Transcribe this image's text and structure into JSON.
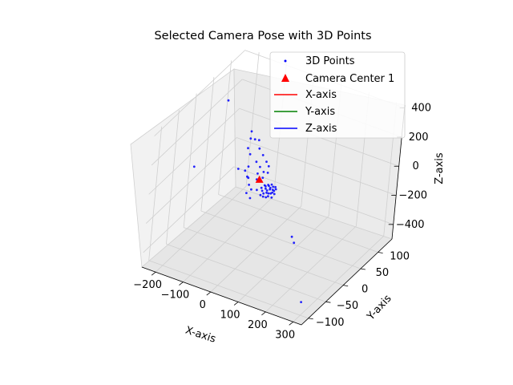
{
  "chart_data": {
    "type": "scatter",
    "title": "Selected Camera Pose with 3D Points",
    "projection": "3d",
    "xlabel": "X-axis",
    "ylabel": "Y-axis",
    "zlabel": "Z-axis",
    "xlim": [
      -250,
      330
    ],
    "ylim": [
      -120,
      140
    ],
    "zlim": [
      -500,
      420
    ],
    "x_ticks": [
      -200,
      -100,
      0,
      100,
      200,
      300
    ],
    "y_ticks": [
      -100,
      -50,
      0,
      50,
      100
    ],
    "z_ticks": [
      -400,
      -200,
      0,
      200,
      400
    ],
    "x_tick_labels": [
      "−200",
      "−100",
      "0",
      "100",
      "200",
      "300"
    ],
    "y_tick_labels": [
      "−100",
      "−50",
      "0",
      "50",
      "100"
    ],
    "z_tick_labels": [
      "−400",
      "−200",
      "0",
      "200",
      "400"
    ],
    "grid": true,
    "legend_position": "top-right",
    "legend": [
      {
        "label": "3D Points",
        "marker": "dot",
        "color": "#0000ff"
      },
      {
        "label": "Camera Center 1",
        "marker": "triangle",
        "color": "#ff0000"
      },
      {
        "label": "X-axis",
        "marker": "line",
        "color": "#ff0000"
      },
      {
        "label": "Y-axis",
        "marker": "line",
        "color": "#008000"
      },
      {
        "label": "Z-axis",
        "marker": "line",
        "color": "#0000ff"
      }
    ],
    "camera_center": {
      "x": 0,
      "y": 0,
      "z": 0
    },
    "points": [
      {
        "x": -180,
        "y": 40,
        "z": 330
      },
      {
        "x": -200,
        "y": -30,
        "z": 20
      },
      {
        "x": -110,
        "y": 60,
        "z": 120
      },
      {
        "x": -100,
        "y": 50,
        "z": 100
      },
      {
        "x": -90,
        "y": 55,
        "z": 90
      },
      {
        "x": -95,
        "y": 40,
        "z": 60
      },
      {
        "x": -70,
        "y": 50,
        "z": 110
      },
      {
        "x": -80,
        "y": 35,
        "z": 40
      },
      {
        "x": -60,
        "y": 45,
        "z": 70
      },
      {
        "x": -50,
        "y": 30,
        "z": 20
      },
      {
        "x": -65,
        "y": 20,
        "z": 0
      },
      {
        "x": -55,
        "y": 10,
        "z": -40
      },
      {
        "x": -100,
        "y": 20,
        "z": -40
      },
      {
        "x": -70,
        "y": 15,
        "z": -20
      },
      {
        "x": -40,
        "y": 40,
        "z": 50
      },
      {
        "x": -30,
        "y": 25,
        "z": 10
      },
      {
        "x": -20,
        "y": 35,
        "z": 30
      },
      {
        "x": -25,
        "y": 15,
        "z": -10
      },
      {
        "x": -10,
        "y": 20,
        "z": 0
      },
      {
        "x": -5,
        "y": 30,
        "z": 20
      },
      {
        "x": -45,
        "y": 5,
        "z": -30
      },
      {
        "x": -35,
        "y": 0,
        "z": -60
      },
      {
        "x": -15,
        "y": 5,
        "z": -20
      },
      {
        "x": 0,
        "y": 10,
        "z": -10
      },
      {
        "x": 5,
        "y": 20,
        "z": 5
      },
      {
        "x": -30,
        "y": -10,
        "z": -90
      },
      {
        "x": -20,
        "y": -5,
        "z": -70
      },
      {
        "x": -10,
        "y": -15,
        "z": -100
      },
      {
        "x": 0,
        "y": -5,
        "z": -60
      },
      {
        "x": 10,
        "y": 0,
        "z": -50
      },
      {
        "x": 15,
        "y": 5,
        "z": -40
      },
      {
        "x": 20,
        "y": -10,
        "z": -70
      },
      {
        "x": 25,
        "y": 0,
        "z": -45
      },
      {
        "x": 30,
        "y": 5,
        "z": -35
      },
      {
        "x": 35,
        "y": -5,
        "z": -55
      },
      {
        "x": 40,
        "y": 0,
        "z": -40
      },
      {
        "x": 45,
        "y": 5,
        "z": -30
      },
      {
        "x": 50,
        "y": -5,
        "z": -50
      },
      {
        "x": 55,
        "y": 0,
        "z": -40
      },
      {
        "x": 60,
        "y": -10,
        "z": -60
      },
      {
        "x": 28,
        "y": -8,
        "z": -58
      },
      {
        "x": 33,
        "y": -2,
        "z": -48
      },
      {
        "x": 38,
        "y": 3,
        "z": -38
      },
      {
        "x": 43,
        "y": -6,
        "z": -52
      },
      {
        "x": 48,
        "y": 2,
        "z": -42
      },
      {
        "x": 53,
        "y": -3,
        "z": -46
      },
      {
        "x": 22,
        "y": 2,
        "z": -36
      },
      {
        "x": 18,
        "y": -4,
        "z": -56
      },
      {
        "x": 42,
        "y": -12,
        "z": -66
      },
      {
        "x": 58,
        "y": 3,
        "z": -34
      },
      {
        "x": 36,
        "y": 8,
        "z": -28
      },
      {
        "x": 46,
        "y": -9,
        "z": -62
      },
      {
        "x": 26,
        "y": 6,
        "z": -32
      },
      {
        "x": 52,
        "y": 6,
        "z": -30
      },
      {
        "x": 62,
        "y": -4,
        "z": -48
      },
      {
        "x": 32,
        "y": -12,
        "z": -68
      },
      {
        "x": 200,
        "y": -60,
        "z": -120
      },
      {
        "x": 215,
        "y": -65,
        "z": -140
      },
      {
        "x": 310,
        "y": -110,
        "z": -380
      }
    ]
  }
}
